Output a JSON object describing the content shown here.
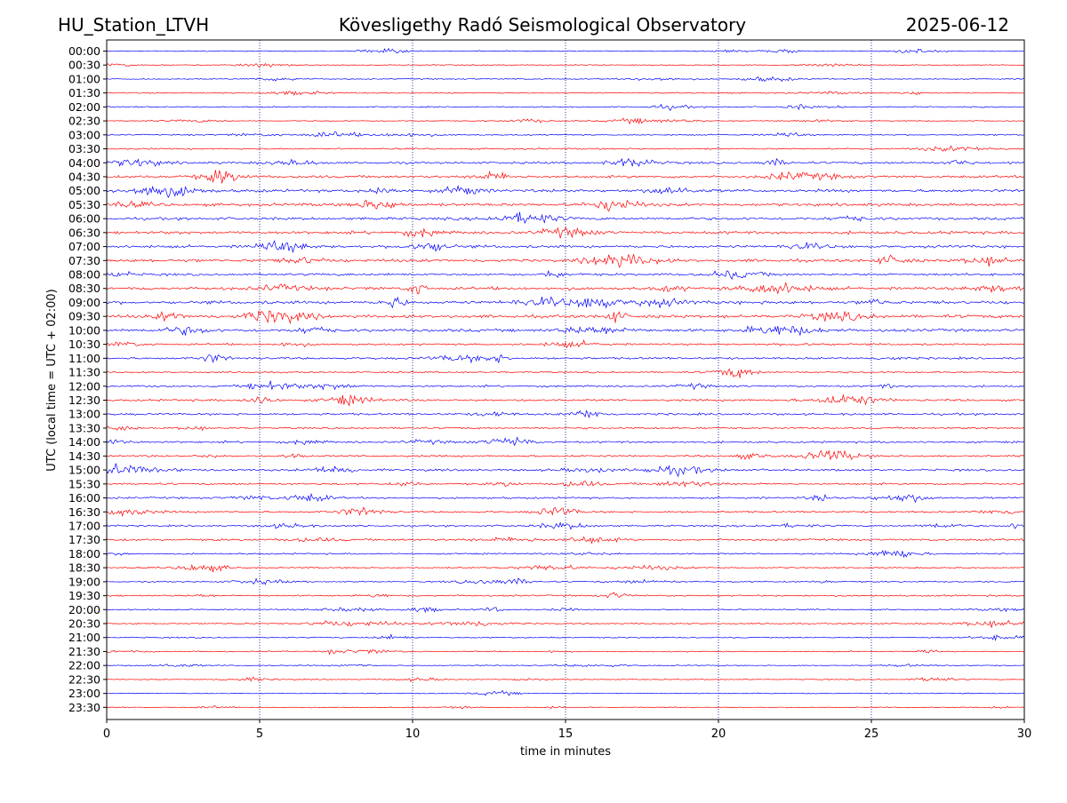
{
  "header": {
    "station": "HU_Station_LTVH",
    "observatory": "Kövesligethy Radó Seismological Observatory",
    "date": "2025-06-12"
  },
  "colors": {
    "trace_a": "#0000ff",
    "trace_b": "#ff0000",
    "axis": "#000000",
    "grid": "#000080"
  },
  "chart_data": {
    "type": "line",
    "title": "Kövesligethy Radó Seismological Observatory",
    "xlabel": "time in minutes",
    "ylabel": "UTC (local time = UTC + 02:00)",
    "xlim": [
      0,
      30
    ],
    "x_ticks": [
      "0",
      "5",
      "10",
      "15",
      "20",
      "25",
      "30"
    ],
    "grid": "vertical dotted at x ticks",
    "trace_colors_alternate": [
      "#0000ff",
      "#ff0000"
    ],
    "rows": [
      {
        "label": "00:00",
        "activity": 0.06
      },
      {
        "label": "00:30",
        "activity": 0.08
      },
      {
        "label": "01:00",
        "activity": 0.1
      },
      {
        "label": "01:30",
        "activity": 0.1
      },
      {
        "label": "02:00",
        "activity": 0.12
      },
      {
        "label": "02:30",
        "activity": 0.1
      },
      {
        "label": "03:00",
        "activity": 0.14
      },
      {
        "label": "03:30",
        "activity": 0.22
      },
      {
        "label": "04:00",
        "activity": 0.4
      },
      {
        "label": "04:30",
        "activity": 0.45
      },
      {
        "label": "05:00",
        "activity": 0.55
      },
      {
        "label": "05:30",
        "activity": 0.55
      },
      {
        "label": "06:00",
        "activity": 0.5
      },
      {
        "label": "06:30",
        "activity": 0.55
      },
      {
        "label": "07:00",
        "activity": 0.5
      },
      {
        "label": "07:30",
        "activity": 0.55
      },
      {
        "label": "08:00",
        "activity": 0.4
      },
      {
        "label": "08:30",
        "activity": 0.55
      },
      {
        "label": "09:00",
        "activity": 0.6
      },
      {
        "label": "09:30",
        "activity": 0.6
      },
      {
        "label": "10:00",
        "activity": 0.55
      },
      {
        "label": "10:30",
        "activity": 0.3
      },
      {
        "label": "11:00",
        "activity": 0.35
      },
      {
        "label": "11:30",
        "activity": 0.22
      },
      {
        "label": "12:00",
        "activity": 0.3
      },
      {
        "label": "12:30",
        "activity": 0.35
      },
      {
        "label": "13:00",
        "activity": 0.35
      },
      {
        "label": "13:30",
        "activity": 0.3
      },
      {
        "label": "14:00",
        "activity": 0.3
      },
      {
        "label": "14:30",
        "activity": 0.3
      },
      {
        "label": "15:00",
        "activity": 0.35
      },
      {
        "label": "15:30",
        "activity": 0.3
      },
      {
        "label": "16:00",
        "activity": 0.3
      },
      {
        "label": "16:30",
        "activity": 0.3
      },
      {
        "label": "17:00",
        "activity": 0.25
      },
      {
        "label": "17:30",
        "activity": 0.35
      },
      {
        "label": "18:00",
        "activity": 0.2
      },
      {
        "label": "18:30",
        "activity": 0.2
      },
      {
        "label": "19:00",
        "activity": 0.15
      },
      {
        "label": "19:30",
        "activity": 0.22
      },
      {
        "label": "20:00",
        "activity": 0.15
      },
      {
        "label": "20:30",
        "activity": 0.2
      },
      {
        "label": "21:00",
        "activity": 0.12
      },
      {
        "label": "21:30",
        "activity": 0.1
      },
      {
        "label": "22:00",
        "activity": 0.08
      },
      {
        "label": "22:30",
        "activity": 0.06
      },
      {
        "label": "23:00",
        "activity": 0.06
      },
      {
        "label": "23:30",
        "activity": 0.05
      }
    ]
  }
}
